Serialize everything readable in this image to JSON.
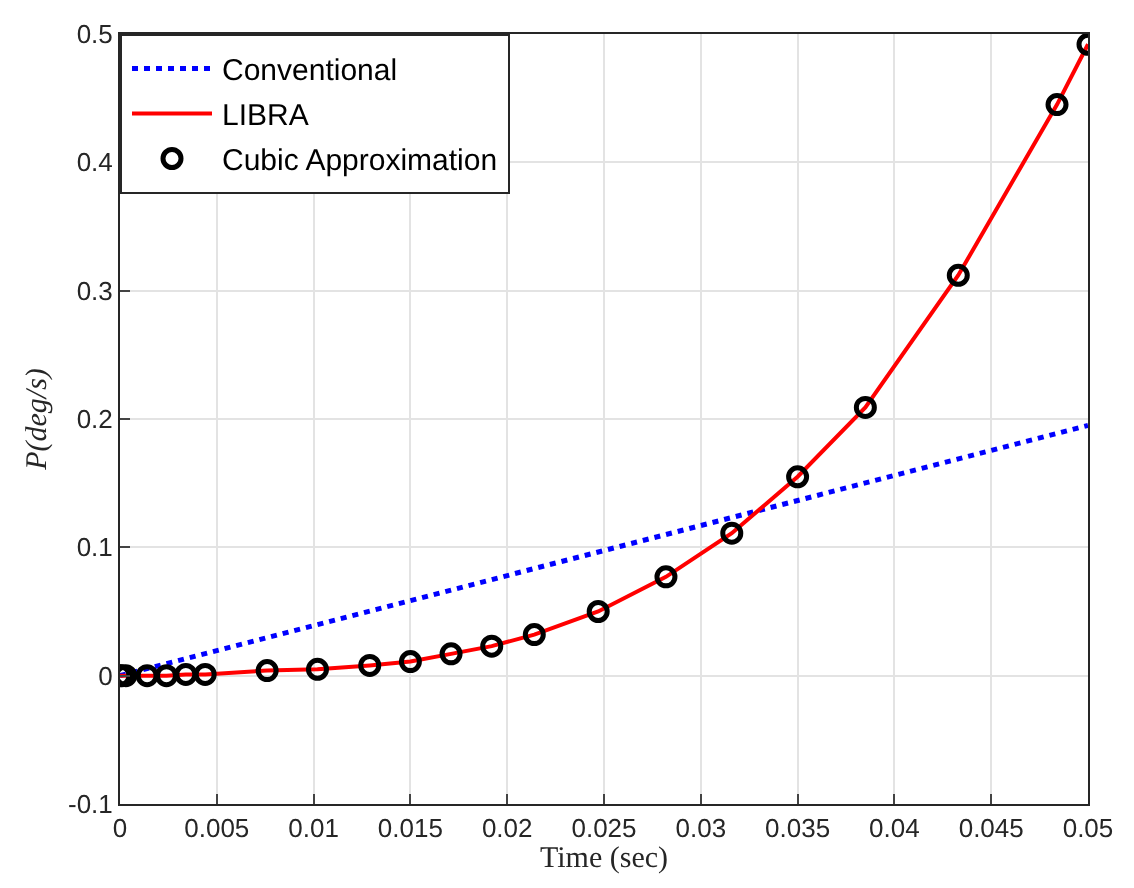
{
  "chart_data": {
    "type": "line",
    "xlabel": "Time (sec)",
    "ylabel": "P(deg/s)",
    "xlim": [
      0,
      0.05
    ],
    "xticks": [
      0,
      0.005,
      0.01,
      0.015,
      0.02,
      0.025,
      0.03,
      0.035,
      0.04,
      0.045,
      0.05
    ],
    "ylim": [
      -0.1,
      0.5
    ],
    "yticks": [
      -0.1,
      0,
      0.1,
      0.2,
      0.3,
      0.4,
      0.5
    ],
    "grid": true,
    "legend": "top left",
    "series": [
      {
        "name": "Conventional",
        "color": "#0000ff",
        "line_style": "dotted",
        "marker": "none",
        "x": [
          0,
          0.05
        ],
        "values": [
          0,
          0.195
        ]
      },
      {
        "name": "LIBRA",
        "color": "#ff0000",
        "line_style": "solid",
        "marker": "none",
        "x": [
          0,
          0.0001,
          0.0003,
          0.0014,
          0.0024,
          0.0034,
          0.0044,
          0.0076,
          0.0102,
          0.0129,
          0.015,
          0.0171,
          0.0192,
          0.0214,
          0.0247,
          0.0282,
          0.0316,
          0.035,
          0.0385,
          0.0433,
          0.0484,
          0.05
        ],
        "values": [
          0,
          0,
          0,
          0,
          0,
          0.001,
          0.001,
          0.004,
          0.005,
          0.008,
          0.011,
          0.017,
          0.023,
          0.032,
          0.05,
          0.077,
          0.111,
          0.155,
          0.209,
          0.312,
          0.445,
          0.492
        ]
      },
      {
        "name": "Cubic Approximation",
        "type": "scatter",
        "color": "#000000",
        "marker": "circle",
        "x": [
          0,
          0.0001,
          0.0003,
          0.0014,
          0.0024,
          0.0034,
          0.0044,
          0.0076,
          0.0102,
          0.0129,
          0.015,
          0.0171,
          0.0192,
          0.0214,
          0.0247,
          0.0282,
          0.0316,
          0.035,
          0.0385,
          0.0433,
          0.0484,
          0.05
        ],
        "values": [
          0,
          0,
          0,
          0,
          0,
          0.001,
          0.001,
          0.004,
          0.005,
          0.008,
          0.011,
          0.017,
          0.023,
          0.032,
          0.05,
          0.077,
          0.111,
          0.155,
          0.209,
          0.312,
          0.445,
          0.492
        ]
      }
    ]
  }
}
